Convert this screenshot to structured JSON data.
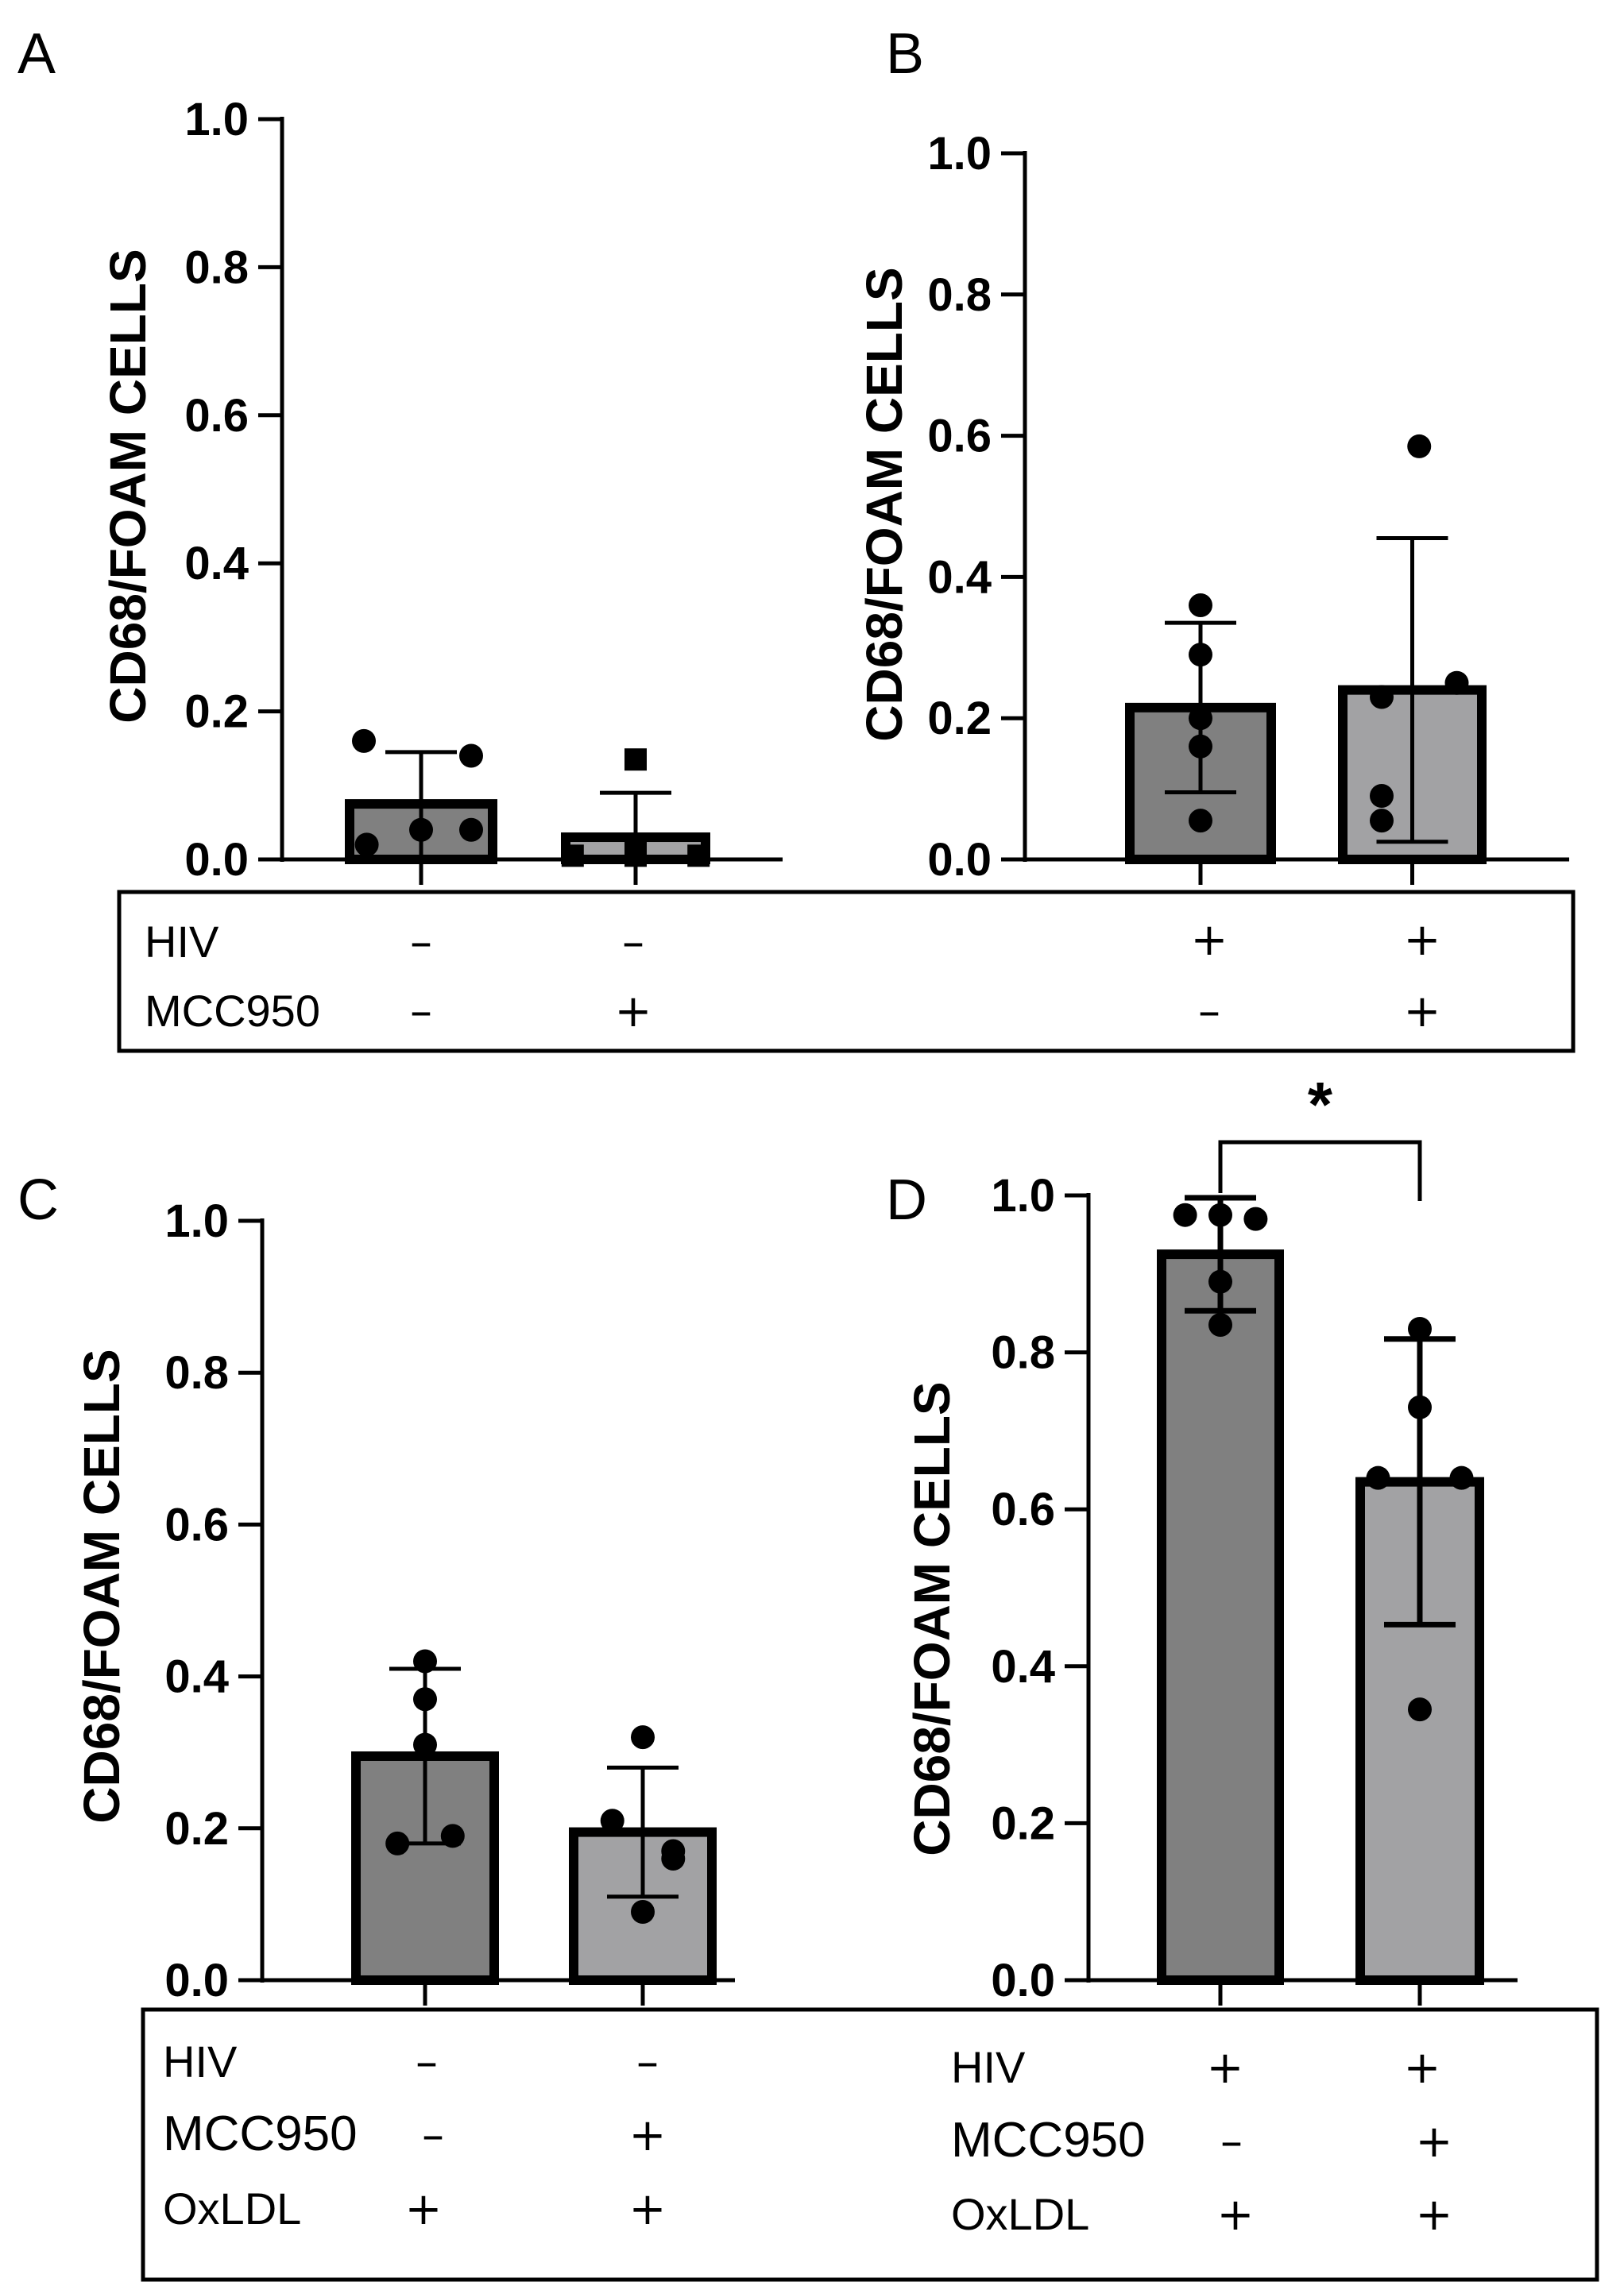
{
  "figure": {
    "minus_symbol": "–",
    "plus_symbol": "+",
    "colors": {
      "bar_dark": "#808080",
      "bar_light": "#A2A2A4",
      "ink": "#000000",
      "background": "#FFFFFF"
    }
  },
  "chart_data": [
    {
      "panel": "A",
      "type": "bar",
      "ylabel": "CD68/FOAM CELLS",
      "ylim": [
        0,
        1.0
      ],
      "yticks": [
        "0.0",
        "0.2",
        "0.4",
        "0.6",
        "0.8",
        "1.0"
      ],
      "categories": [
        "–/–",
        "–/+"
      ],
      "values": [
        0.075,
        0.03
      ],
      "error": [
        0.07,
        0.06
      ],
      "points": [
        [
          0.16,
          0.02,
          0.04,
          0.14,
          0.04
        ],
        [
          0.005,
          0.005,
          0.01,
          0.135,
          0.005
        ]
      ],
      "markers": [
        "circle",
        "square"
      ],
      "conditions": [
        {
          "label": "HIV",
          "signs": [
            "–",
            "–"
          ]
        },
        {
          "label": "MCC950",
          "signs": [
            "–",
            "+"
          ]
        }
      ]
    },
    {
      "panel": "B",
      "type": "bar",
      "ylabel": "CD68/FOAM CELLS",
      "ylim": [
        0,
        1.0
      ],
      "yticks": [
        "0.0",
        "0.2",
        "0.4",
        "0.6",
        "0.8",
        "1.0"
      ],
      "categories": [
        "+/–",
        "+/+"
      ],
      "values": [
        0.215,
        0.24
      ],
      "error": [
        0.12,
        0.215
      ],
      "points": [
        [
          0.36,
          0.29,
          0.2,
          0.16,
          0.055
        ],
        [
          0.585,
          0.25,
          0.23,
          0.09,
          0.055
        ]
      ],
      "markers": [
        "circle",
        "circle"
      ],
      "conditions": [
        {
          "label": "HIV",
          "signs": [
            "+",
            "+"
          ]
        },
        {
          "label": "MCC950",
          "signs": [
            "–",
            "+"
          ]
        }
      ]
    },
    {
      "panel": "C",
      "type": "bar",
      "ylabel": "CD68/FOAM CELLS",
      "ylim": [
        0,
        1.0
      ],
      "yticks": [
        "0.0",
        "0.2",
        "0.4",
        "0.6",
        "0.8",
        "1.0"
      ],
      "categories": [
        "–/–/+",
        "–/+/+"
      ],
      "values": [
        0.295,
        0.195
      ],
      "error": [
        0.115,
        0.085
      ],
      "points": [
        [
          0.42,
          0.37,
          0.31,
          0.19,
          0.18
        ],
        [
          0.32,
          0.21,
          0.17,
          0.16,
          0.09
        ]
      ],
      "markers": [
        "circle",
        "circle"
      ],
      "conditions": [
        {
          "label": "HIV",
          "signs": [
            "–",
            "–"
          ]
        },
        {
          "label": "MCC950",
          "signs": [
            "–",
            "+"
          ]
        },
        {
          "label": "OxLDL",
          "signs": [
            "+",
            "+"
          ]
        }
      ]
    },
    {
      "panel": "D",
      "type": "bar",
      "ylabel": "CD68/FOAM CELLS",
      "ylim": [
        0,
        1.0
      ],
      "yticks": [
        "0.0",
        "0.2",
        "0.4",
        "0.6",
        "0.8",
        "1.0"
      ],
      "categories": [
        "+/–/+",
        "+/+/+"
      ],
      "values": [
        0.925,
        0.635
      ],
      "error": [
        0.072,
        0.182
      ],
      "points": [
        [
          0.975,
          0.975,
          0.97,
          0.89,
          0.835
        ],
        [
          0.83,
          0.73,
          0.64,
          0.64,
          0.345
        ]
      ],
      "markers": [
        "circle",
        "circle"
      ],
      "significance": "*",
      "conditions": [
        {
          "label": "HIV",
          "signs": [
            "+",
            "+"
          ]
        },
        {
          "label": "MCC950",
          "signs": [
            "–",
            "+"
          ]
        },
        {
          "label": "OxLDL",
          "signs": [
            "+",
            "+"
          ]
        }
      ]
    }
  ]
}
